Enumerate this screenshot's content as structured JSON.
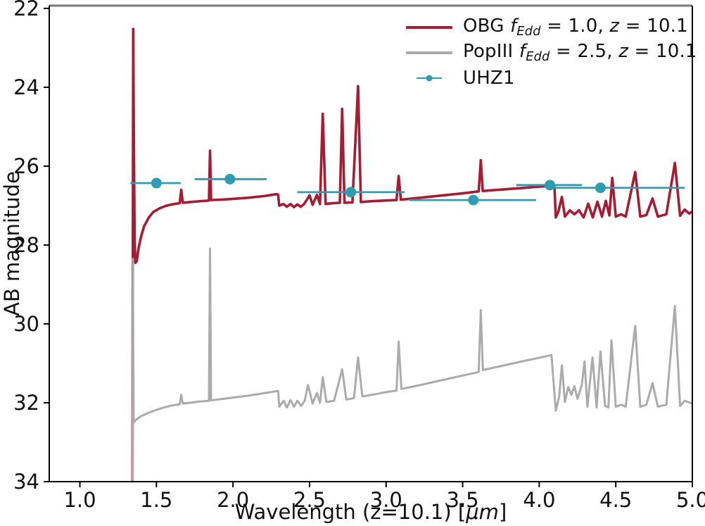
{
  "chart_data": {
    "type": "line",
    "title": "",
    "xlabel_segments": [
      {
        "t": "Wavelength (z=10.1) ["
      },
      {
        "t": "μm",
        "italic": true
      },
      {
        "t": "]"
      }
    ],
    "xlabel_plain": "Wavelength (z=10.1) [μm]",
    "ylabel": "AB magnitude",
    "xlim": [
      0.8,
      5.0
    ],
    "ylim_top": 21.93,
    "ylim_bottom": 34.0,
    "y_axis_inverted": true,
    "grid": false,
    "legend_position": "upper right",
    "x_ticks": [
      1.0,
      1.5,
      2.0,
      2.5,
      3.0,
      3.5,
      4.0,
      4.5,
      5.0
    ],
    "x_tick_labels": [
      "1.0",
      "1.5",
      "2.0",
      "2.5",
      "3.0",
      "3.5",
      "4.0",
      "4.5",
      "5.0"
    ],
    "y_ticks": [
      22,
      24,
      26,
      28,
      30,
      32,
      34
    ],
    "y_tick_labels": [
      "22",
      "24",
      "26",
      "28",
      "30",
      "32",
      "34"
    ],
    "colors": {
      "obg": "#A51C33",
      "popiii": "#ABABAB",
      "uhz1": "#2E9DB2",
      "spine": "#000000",
      "top_spine": "#7A7A7A",
      "text": "#111111"
    },
    "series": [
      {
        "id": "obg",
        "name": "OBG f_Edd = 1.0, z = 10.1",
        "color": "#A51C33",
        "line_width": 3.6,
        "points": [
          [
            1.343,
            35.0
          ],
          [
            1.348,
            22.52
          ],
          [
            1.353,
            25.5
          ],
          [
            1.358,
            27.9
          ],
          [
            1.363,
            28.45
          ],
          [
            1.372,
            28.4
          ],
          [
            1.382,
            28.1
          ],
          [
            1.4,
            27.78
          ],
          [
            1.42,
            27.52
          ],
          [
            1.45,
            27.3
          ],
          [
            1.48,
            27.16
          ],
          [
            1.52,
            27.07
          ],
          [
            1.56,
            27.01
          ],
          [
            1.6,
            26.97
          ],
          [
            1.63,
            26.95
          ],
          [
            1.652,
            26.94
          ],
          [
            1.662,
            26.6
          ],
          [
            1.672,
            26.93
          ],
          [
            1.72,
            26.91
          ],
          [
            1.78,
            26.89
          ],
          [
            1.82,
            26.88
          ],
          [
            1.843,
            26.87
          ],
          [
            1.85,
            25.61
          ],
          [
            1.857,
            26.86
          ],
          [
            1.92,
            26.85
          ],
          [
            2.0,
            26.83
          ],
          [
            2.1,
            26.8
          ],
          [
            2.2,
            26.76
          ],
          [
            2.285,
            26.71
          ],
          [
            2.295,
            26.72
          ],
          [
            2.302,
            27.0
          ],
          [
            2.33,
            26.96
          ],
          [
            2.352,
            27.03
          ],
          [
            2.375,
            26.96
          ],
          [
            2.398,
            27.04
          ],
          [
            2.42,
            26.97
          ],
          [
            2.443,
            27.03
          ],
          [
            2.465,
            26.96
          ],
          [
            2.5,
            26.74
          ],
          [
            2.52,
            26.98
          ],
          [
            2.548,
            26.73
          ],
          [
            2.568,
            26.96
          ],
          [
            2.586,
            24.67
          ],
          [
            2.605,
            26.96
          ],
          [
            2.65,
            26.94
          ],
          [
            2.698,
            26.93
          ],
          [
            2.713,
            24.55
          ],
          [
            2.728,
            26.93
          ],
          [
            2.78,
            26.92
          ],
          [
            2.817,
            23.97
          ],
          [
            2.835,
            26.91
          ],
          [
            2.9,
            26.89
          ],
          [
            3.0,
            26.87
          ],
          [
            3.068,
            26.86
          ],
          [
            3.082,
            26.25
          ],
          [
            3.096,
            26.85
          ],
          [
            3.2,
            26.81
          ],
          [
            3.3,
            26.77
          ],
          [
            3.4,
            26.73
          ],
          [
            3.5,
            26.69
          ],
          [
            3.605,
            26.64
          ],
          [
            3.618,
            25.85
          ],
          [
            3.631,
            26.63
          ],
          [
            3.7,
            26.61
          ],
          [
            3.8,
            26.58
          ],
          [
            3.9,
            26.55
          ],
          [
            4.0,
            26.52
          ],
          [
            4.08,
            26.5
          ],
          [
            4.1,
            26.53
          ],
          [
            4.108,
            27.3
          ],
          [
            4.125,
            27.15
          ],
          [
            4.148,
            26.78
          ],
          [
            4.168,
            27.28
          ],
          [
            4.2,
            27.12
          ],
          [
            4.23,
            27.22
          ],
          [
            4.26,
            27.12
          ],
          [
            4.29,
            27.3
          ],
          [
            4.32,
            26.95
          ],
          [
            4.35,
            27.3
          ],
          [
            4.38,
            26.9
          ],
          [
            4.41,
            27.28
          ],
          [
            4.435,
            26.88
          ],
          [
            4.458,
            27.25
          ],
          [
            4.477,
            26.3
          ],
          [
            4.5,
            27.28
          ],
          [
            4.535,
            27.22
          ],
          [
            4.565,
            27.28
          ],
          [
            4.627,
            26.15
          ],
          [
            4.66,
            27.28
          ],
          [
            4.7,
            27.24
          ],
          [
            4.74,
            26.82
          ],
          [
            4.775,
            27.28
          ],
          [
            4.83,
            27.22
          ],
          [
            4.886,
            25.92
          ],
          [
            4.92,
            27.26
          ],
          [
            4.95,
            27.1
          ],
          [
            4.98,
            27.2
          ],
          [
            5.0,
            27.15
          ]
        ]
      },
      {
        "id": "popiii",
        "name": "PopIII f_Edd = 2.5, z = 10.1",
        "color": "#ABABAB",
        "line_width": 3.0,
        "points": [
          [
            1.344,
            35.0
          ],
          [
            1.3465,
            28.35
          ],
          [
            1.351,
            32.5
          ],
          [
            1.37,
            32.42
          ],
          [
            1.4,
            32.34
          ],
          [
            1.45,
            32.25
          ],
          [
            1.5,
            32.18
          ],
          [
            1.55,
            32.12
          ],
          [
            1.6,
            32.07
          ],
          [
            1.652,
            32.04
          ],
          [
            1.662,
            31.8
          ],
          [
            1.672,
            32.02
          ],
          [
            1.72,
            32.0
          ],
          [
            1.78,
            31.97
          ],
          [
            1.843,
            31.95
          ],
          [
            1.85,
            28.09
          ],
          [
            1.857,
            31.94
          ],
          [
            1.92,
            31.91
          ],
          [
            2.0,
            31.87
          ],
          [
            2.1,
            31.82
          ],
          [
            2.2,
            31.76
          ],
          [
            2.295,
            31.7
          ],
          [
            2.302,
            32.1
          ],
          [
            2.33,
            31.95
          ],
          [
            2.352,
            32.12
          ],
          [
            2.375,
            31.93
          ],
          [
            2.398,
            32.1
          ],
          [
            2.42,
            31.95
          ],
          [
            2.445,
            32.08
          ],
          [
            2.468,
            31.95
          ],
          [
            2.49,
            31.55
          ],
          [
            2.52,
            32.02
          ],
          [
            2.548,
            31.75
          ],
          [
            2.568,
            32.0
          ],
          [
            2.586,
            31.35
          ],
          [
            2.61,
            31.98
          ],
          [
            2.66,
            31.95
          ],
          [
            2.713,
            31.15
          ],
          [
            2.74,
            31.92
          ],
          [
            2.79,
            31.88
          ],
          [
            2.817,
            30.85
          ],
          [
            2.845,
            31.84
          ],
          [
            2.92,
            31.79
          ],
          [
            3.0,
            31.73
          ],
          [
            3.068,
            31.69
          ],
          [
            3.082,
            30.45
          ],
          [
            3.1,
            31.65
          ],
          [
            3.2,
            31.57
          ],
          [
            3.35,
            31.44
          ],
          [
            3.5,
            31.31
          ],
          [
            3.605,
            31.22
          ],
          [
            3.618,
            29.65
          ],
          [
            3.632,
            31.17
          ],
          [
            3.75,
            31.07
          ],
          [
            3.9,
            30.94
          ],
          [
            4.0,
            30.86
          ],
          [
            4.08,
            30.79
          ],
          [
            4.108,
            32.2
          ],
          [
            4.13,
            31.85
          ],
          [
            4.148,
            31.05
          ],
          [
            4.168,
            31.98
          ],
          [
            4.19,
            31.6
          ],
          [
            4.21,
            31.8
          ],
          [
            4.23,
            31.58
          ],
          [
            4.25,
            31.9
          ],
          [
            4.278,
            31.55
          ],
          [
            4.296,
            30.95
          ],
          [
            4.315,
            32.1
          ],
          [
            4.348,
            30.85
          ],
          [
            4.375,
            32.12
          ],
          [
            4.4,
            30.7
          ],
          [
            4.43,
            32.08
          ],
          [
            4.452,
            32.12
          ],
          [
            4.472,
            30.42
          ],
          [
            4.5,
            32.1
          ],
          [
            4.535,
            32.05
          ],
          [
            4.565,
            32.1
          ],
          [
            4.627,
            30.05
          ],
          [
            4.66,
            32.1
          ],
          [
            4.7,
            32.05
          ],
          [
            4.74,
            31.5
          ],
          [
            4.775,
            32.1
          ],
          [
            4.83,
            32.05
          ],
          [
            4.886,
            29.55
          ],
          [
            4.92,
            32.08
          ],
          [
            4.95,
            31.95
          ],
          [
            5.0,
            32.02
          ]
        ]
      }
    ],
    "scatter_series": {
      "id": "uhz1",
      "name": "UHZ1",
      "color": "#2E9DB2",
      "marker": "circle",
      "marker_radius": 7.5,
      "points": [
        {
          "x": 1.5,
          "y": 26.43,
          "xerr_lo": 1.33,
          "xerr_hi": 1.66
        },
        {
          "x": 1.98,
          "y": 26.33,
          "xerr_lo": 1.75,
          "xerr_hi": 2.22
        },
        {
          "x": 2.77,
          "y": 26.66,
          "xerr_lo": 2.42,
          "xerr_hi": 3.12
        },
        {
          "x": 3.57,
          "y": 26.86,
          "xerr_lo": 3.15,
          "xerr_hi": 3.98
        },
        {
          "x": 4.07,
          "y": 26.48,
          "xerr_lo": 3.85,
          "xerr_hi": 4.28
        },
        {
          "x": 4.4,
          "y": 26.55,
          "xerr_lo": 4.07,
          "xerr_hi": 4.95
        }
      ]
    },
    "legend": {
      "entries": [
        {
          "id": "obg",
          "type": "line",
          "color": "#A51C33",
          "segments": [
            {
              "t": "OBG "
            },
            {
              "t": "f",
              "italic": true
            },
            {
              "t": "Edd",
              "sub": true
            },
            {
              "t": " = 1.0, "
            },
            {
              "t": "z",
              "italic": true
            },
            {
              "t": " = 10.1"
            }
          ]
        },
        {
          "id": "popiii",
          "type": "line",
          "color": "#ABABAB",
          "segments": [
            {
              "t": "PopIII "
            },
            {
              "t": "f",
              "italic": true
            },
            {
              "t": "Edd",
              "sub": true
            },
            {
              "t": " = 2.5, "
            },
            {
              "t": "z",
              "italic": true
            },
            {
              "t": " = 10.1"
            }
          ]
        },
        {
          "id": "uhz1",
          "type": "errorbar-point",
          "color": "#2E9DB2",
          "segments": [
            {
              "t": "UHZ1"
            }
          ]
        }
      ]
    }
  }
}
